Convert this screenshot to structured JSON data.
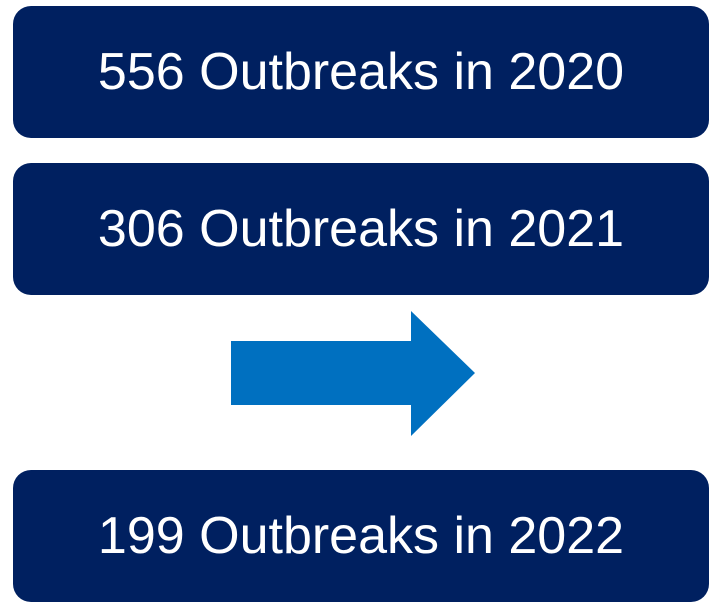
{
  "boxes": [
    {
      "label": "556 Outbreaks in 2020"
    },
    {
      "label": "306 Outbreaks in 2021"
    },
    {
      "label": "199 Outbreaks in 2022"
    }
  ]
}
